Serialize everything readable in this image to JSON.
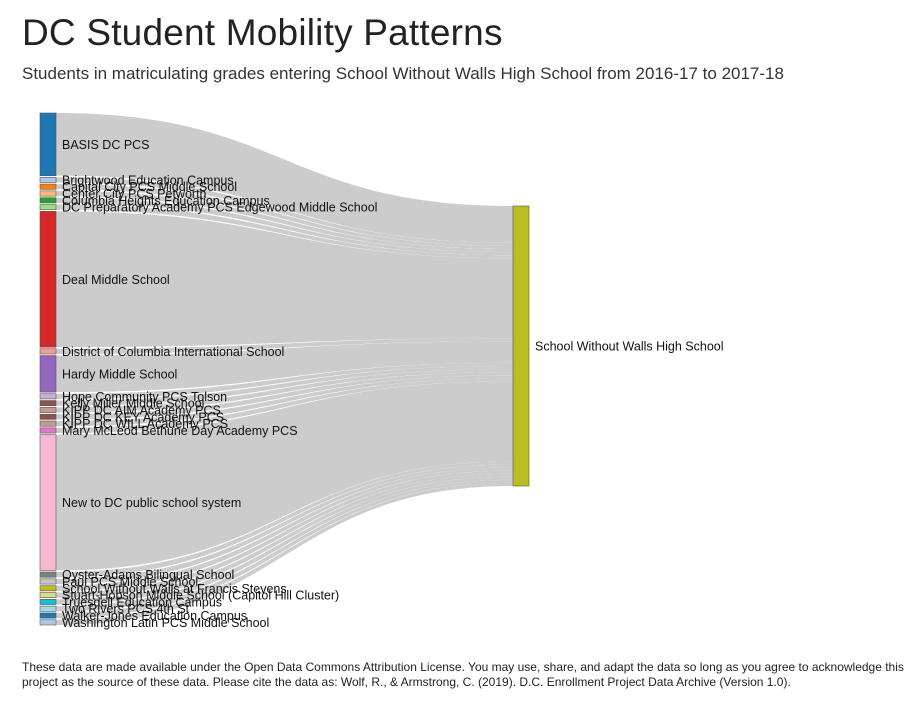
{
  "header": {
    "title": "DC Student Mobility Patterns",
    "subtitle": "Students in matriculating grades entering School Without Walls High School from 2016-17 to 2017-18"
  },
  "footer": {
    "note": "These data are made available under the Open Data Commons Attribution License. You may use, share, and adapt the data so long as you agree to acknowledge this project as the source of these data. Please cite the data as: Wolf, R., & Armstrong, C. (2019). D.C. Enrollment Project Data Archive (Version 1.0)."
  },
  "chart_data": {
    "type": "sankey",
    "target": {
      "name": "School Without Walls High School",
      "color": "#bcbd22"
    },
    "link_color": "#cccccc",
    "sources": [
      {
        "name": "BASIS DC PCS",
        "value": 12,
        "color": "#1f77b4"
      },
      {
        "name": "Brightwood Education Campus",
        "value": 1,
        "color": "#aec7e8"
      },
      {
        "name": "Capital City PCS Middle School",
        "value": 1,
        "color": "#ff7f0e"
      },
      {
        "name": "Center City PCS Petworth",
        "value": 1,
        "color": "#ffbb78"
      },
      {
        "name": "Columbia Heights Education Campus",
        "value": 1,
        "color": "#2ca02c"
      },
      {
        "name": "DC Preparatory Academy PCS Edgewood Middle School",
        "value": 1,
        "color": "#98df8a"
      },
      {
        "name": "Deal Middle School",
        "value": 26,
        "color": "#d62728"
      },
      {
        "name": "District of Columbia International School",
        "value": 1,
        "color": "#ff9896"
      },
      {
        "name": "Hardy Middle School",
        "value": 7,
        "color": "#9467bd"
      },
      {
        "name": "Hope Community PCS Tolson",
        "value": 1,
        "color": "#c5b0d5"
      },
      {
        "name": "Kelly Miller Middle School",
        "value": 1,
        "color": "#8c564b"
      },
      {
        "name": "KIPP DC AIM Academy PCS",
        "value": 1,
        "color": "#c49c94"
      },
      {
        "name": "KIPP DC KEY Academy PCS",
        "value": 1,
        "color": "#8c564b"
      },
      {
        "name": "KIPP DC WILL Academy PCS",
        "value": 1,
        "color": "#c49c94"
      },
      {
        "name": "Mary McLeod Bethune Day Academy PCS",
        "value": 1,
        "color": "#e377c2"
      },
      {
        "name": "New to DC public school system",
        "value": 26,
        "color": "#f7b6d2"
      },
      {
        "name": "Oyster-Adams Bilingual School",
        "value": 1,
        "color": "#7f7f7f"
      },
      {
        "name": "Paul PCS Middle School",
        "value": 1,
        "color": "#c7c7c7"
      },
      {
        "name": "School Without Walls at Francis Stevens",
        "value": 1,
        "color": "#bcbd22"
      },
      {
        "name": "Stuart-Hobson Middle School (Capitol Hill Cluster)",
        "value": 1,
        "color": "#dbdb8d"
      },
      {
        "name": "Truesdell Education Campus",
        "value": 1,
        "color": "#17becf"
      },
      {
        "name": "Two Rivers PCS 4th St",
        "value": 1,
        "color": "#9edae5"
      },
      {
        "name": "Walker-Jones Education Campus",
        "value": 1,
        "color": "#1f77b4"
      },
      {
        "name": "Washington Latin PCS Middle School",
        "value": 1,
        "color": "#aec7e8"
      }
    ]
  }
}
